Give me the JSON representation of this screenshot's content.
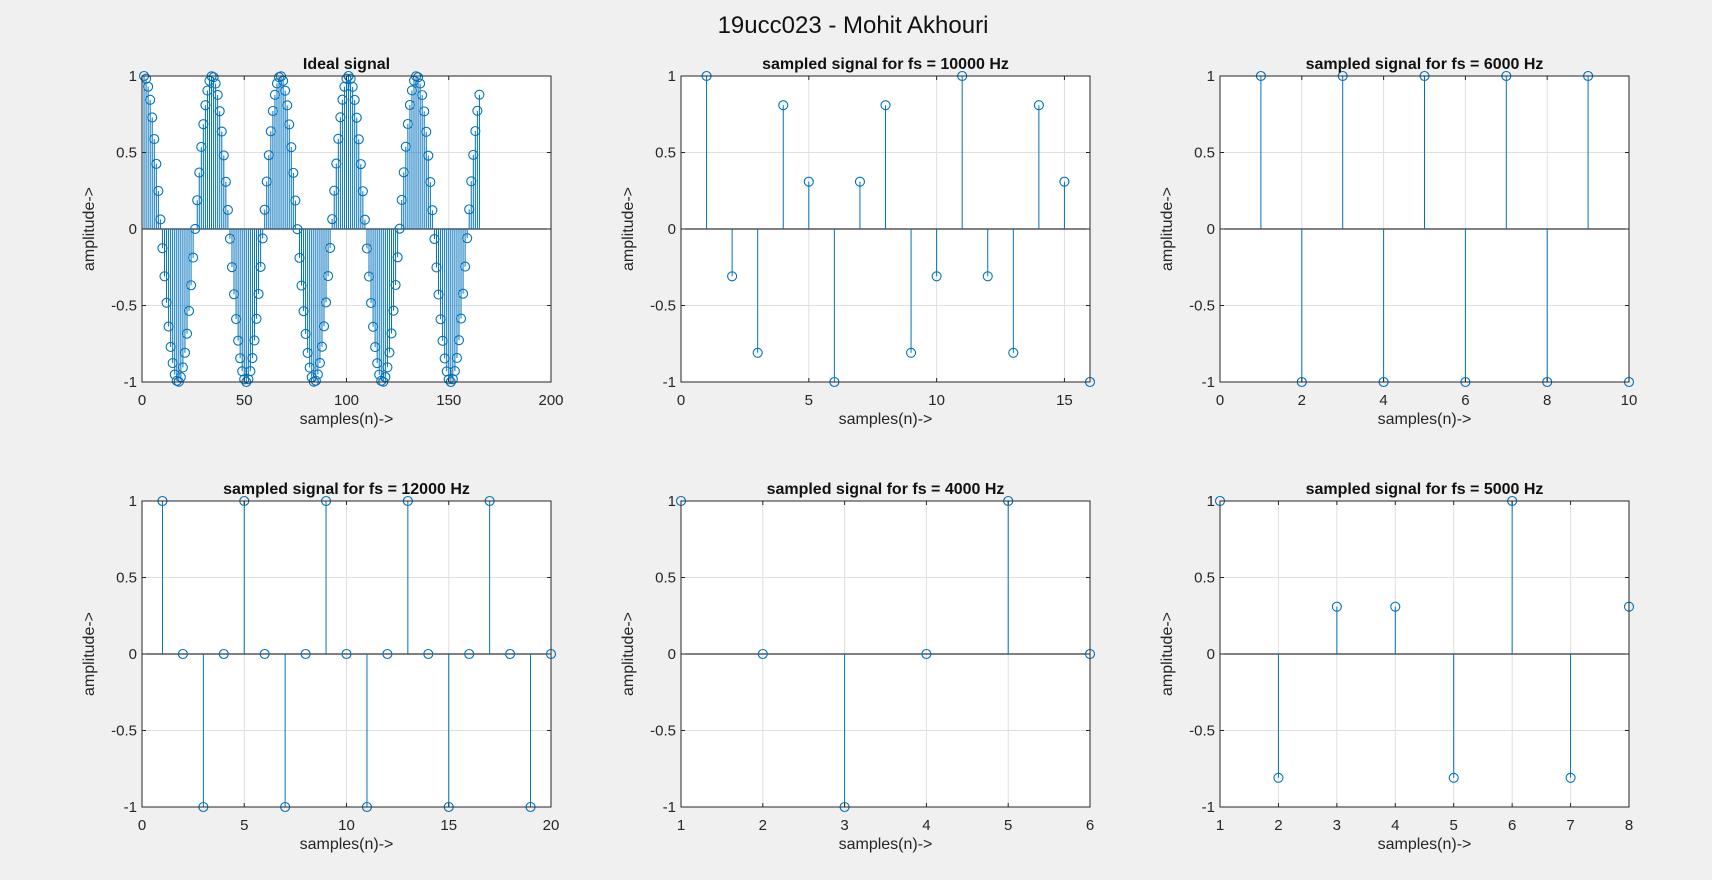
{
  "figure": {
    "title": "19ucc023 - Mohit Akhouri",
    "colors": {
      "background": "#f0f0f0",
      "axes_background": "#ffffff",
      "stem": "#0072bd",
      "grid": "#dfdfdf",
      "axis": "#262626",
      "baseline": "#000000"
    }
  },
  "chart_data": [
    {
      "type": "stem",
      "title": "Ideal signal",
      "xlabel": "samples(n)->",
      "ylabel": "amplitude->",
      "xlim": [
        0,
        200
      ],
      "ylim": [
        -1,
        1
      ],
      "xticks": [
        0,
        50,
        100,
        150,
        200
      ],
      "yticks": [
        -1,
        -0.5,
        0,
        0.5,
        1
      ],
      "grid": true,
      "signal": {
        "function": "cos",
        "period_samples": 33.33,
        "n_start": 1,
        "n_end": 165
      }
    },
    {
      "type": "stem",
      "title": "sampled signal for fs = 10000 Hz",
      "xlabel": "samples(n)->",
      "ylabel": "amplitude->",
      "xlim": [
        0,
        16
      ],
      "ylim": [
        -1,
        1
      ],
      "xticks": [
        0,
        5,
        10,
        15
      ],
      "yticks": [
        -1,
        -0.5,
        0,
        0.5,
        1
      ],
      "grid": true,
      "x": [
        1,
        2,
        3,
        4,
        5,
        6,
        7,
        8,
        9,
        10,
        11,
        12,
        13,
        14,
        15,
        16
      ],
      "values": [
        1,
        -0.309,
        -0.809,
        0.809,
        0.309,
        -1,
        0.309,
        0.809,
        -0.809,
        -0.309,
        1,
        -0.309,
        -0.809,
        0.809,
        0.309,
        -1
      ]
    },
    {
      "type": "stem",
      "title": "sampled signal for fs = 6000 Hz",
      "xlabel": "samples(n)->",
      "ylabel": "amplitude->",
      "xlim": [
        0,
        10
      ],
      "ylim": [
        -1,
        1
      ],
      "xticks": [
        0,
        2,
        4,
        6,
        8,
        10
      ],
      "yticks": [
        -1,
        -0.5,
        0,
        0.5,
        1
      ],
      "grid": true,
      "x": [
        1,
        2,
        3,
        4,
        5,
        6,
        7,
        8,
        9,
        10
      ],
      "values": [
        1,
        -1,
        1,
        -1,
        1,
        -1,
        1,
        -1,
        1,
        -1
      ]
    },
    {
      "type": "stem",
      "title": "sampled signal for fs = 12000 Hz",
      "xlabel": "samples(n)->",
      "ylabel": "amplitude->",
      "xlim": [
        0,
        20
      ],
      "ylim": [
        -1,
        1
      ],
      "xticks": [
        0,
        5,
        10,
        15,
        20
      ],
      "yticks": [
        -1,
        -0.5,
        0,
        0.5,
        1
      ],
      "grid": true,
      "x": [
        1,
        2,
        3,
        4,
        5,
        6,
        7,
        8,
        9,
        10,
        11,
        12,
        13,
        14,
        15,
        16,
        17,
        18,
        19,
        20
      ],
      "values": [
        1,
        0,
        -1,
        0,
        1,
        0,
        -1,
        0,
        1,
        0,
        -1,
        0,
        1,
        0,
        -1,
        0,
        1,
        0,
        -1,
        0
      ]
    },
    {
      "type": "stem",
      "title": "sampled signal for fs = 4000 Hz",
      "xlabel": "samples(n)->",
      "ylabel": "amplitude->",
      "xlim": [
        1,
        6
      ],
      "ylim": [
        -1,
        1
      ],
      "xticks": [
        1,
        2,
        3,
        4,
        5,
        6
      ],
      "yticks": [
        -1,
        -0.5,
        0,
        0.5,
        1
      ],
      "grid": true,
      "x": [
        1,
        2,
        3,
        4,
        5,
        6
      ],
      "values": [
        1,
        0,
        -1,
        0,
        1,
        0
      ]
    },
    {
      "type": "stem",
      "title": "sampled signal for fs = 5000 Hz",
      "xlabel": "samples(n)->",
      "ylabel": "amplitude->",
      "xlim": [
        1,
        8
      ],
      "ylim": [
        -1,
        1
      ],
      "xticks": [
        1,
        2,
        3,
        4,
        5,
        6,
        7,
        8
      ],
      "yticks": [
        -1,
        -0.5,
        0,
        0.5,
        1
      ],
      "grid": true,
      "x": [
        1,
        2,
        3,
        4,
        5,
        6,
        7,
        8
      ],
      "values": [
        1,
        -0.809,
        0.309,
        0.309,
        -0.809,
        1,
        -0.809,
        0.309
      ]
    }
  ]
}
